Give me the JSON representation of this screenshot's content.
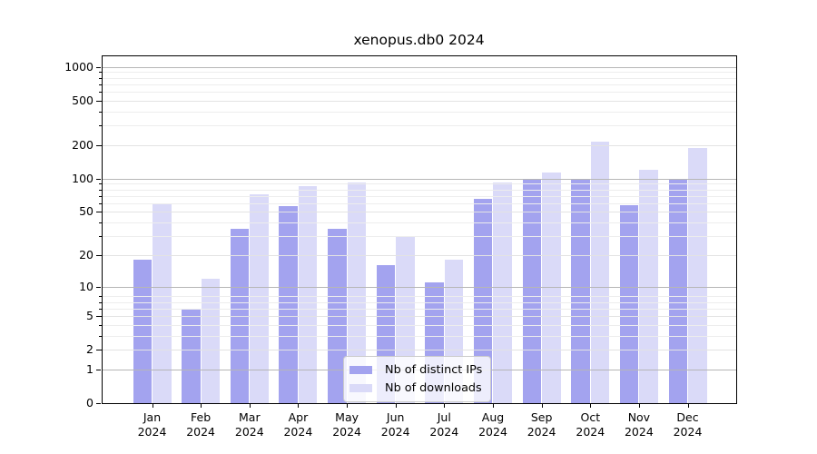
{
  "figure": {
    "title": "xenopus.db0 2024"
  },
  "chart_data": {
    "type": "bar",
    "title": "xenopus.db0 2024",
    "scale": "log1p",
    "grid": true,
    "months": [
      "Jan",
      "Feb",
      "Mar",
      "Apr",
      "May",
      "Jun",
      "Jul",
      "Aug",
      "Sep",
      "Oct",
      "Nov",
      "Dec"
    ],
    "year": "2024",
    "categories": [
      "Jan 2024",
      "Feb 2024",
      "Mar 2024",
      "Apr 2024",
      "May 2024",
      "Jun 2024",
      "Jul 2024",
      "Aug 2024",
      "Sep 2024",
      "Oct 2024",
      "Nov 2024",
      "Dec 2024"
    ],
    "series": [
      {
        "name": "Nb of distinct IPs",
        "color": "#a3a3ef",
        "values": [
          18,
          6,
          35,
          56,
          35,
          16,
          11,
          66,
          100,
          100,
          57,
          100
        ]
      },
      {
        "name": "Nb of downloads",
        "color": "#dadaf8",
        "values": [
          60,
          12,
          72,
          85,
          92,
          30,
          18,
          93,
          113,
          215,
          120,
          190
        ]
      }
    ],
    "yticks": [
      0,
      1,
      2,
      5,
      10,
      20,
      50,
      100,
      200,
      500,
      1000
    ],
    "gridlines_major": [
      1,
      10,
      100,
      1000
    ],
    "gridlines_mid": [
      2,
      5,
      20,
      50,
      200,
      500
    ],
    "gridlines_minor": [
      3,
      4,
      6,
      7,
      8,
      30,
      40,
      60,
      70,
      80,
      90,
      300,
      400,
      600,
      700,
      800,
      900
    ],
    "ylim": [
      0,
      1290
    ],
    "legend_position": "lower center",
    "colors": {
      "distinct_ips": "#a3a3ef",
      "downloads": "#dadaf8",
      "grid_major": "#b6b6b6",
      "grid_mid": "#e3e3e3",
      "grid_minor": "#ededed",
      "axis": "#000000",
      "text": "#000000",
      "legend_border": "#cbcbcb"
    }
  }
}
